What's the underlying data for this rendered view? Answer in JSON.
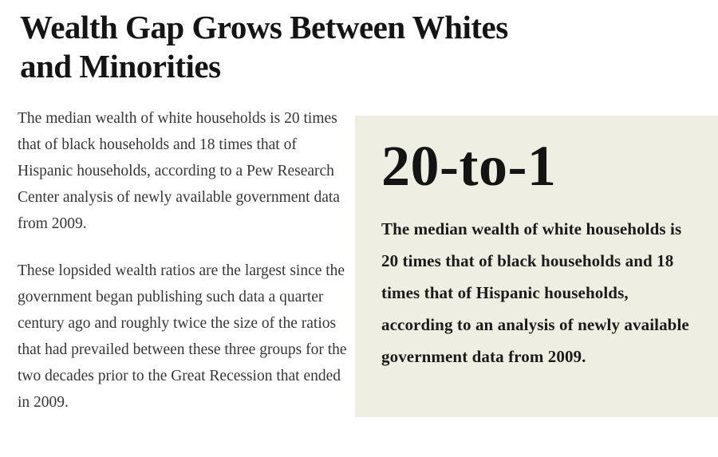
{
  "headline": {
    "text": "Wealth Gap Grows Between Whites and Minorities",
    "line1": "Wealth Gap Grows Between Whites",
    "line2": "and Minorities"
  },
  "article": {
    "paragraphs": [
      "The median wealth of white households is 20 times that of black households and 18 times that of Hispanic households, according to a Pew Research Center analysis of newly available government data from 2009.",
      "These lopsided wealth ratios are the largest since the government began publishing such data a quarter century ago and roughly twice the size of the ratios that had prevailed between these three groups for the two decades prior to the Great Recession that ended in 2009."
    ]
  },
  "callout": {
    "stat": "20-to-1",
    "description": "The median wealth of white households is 20 times that of black households and 18 times that of Hispanic households, according to an analysis of newly available government data from 2009."
  },
  "colors": {
    "page_background": "#ffffff",
    "headline_text": "#151515",
    "body_text": "#363636",
    "callout_background": "#efeee2",
    "callout_text": "#1b1b1b"
  }
}
